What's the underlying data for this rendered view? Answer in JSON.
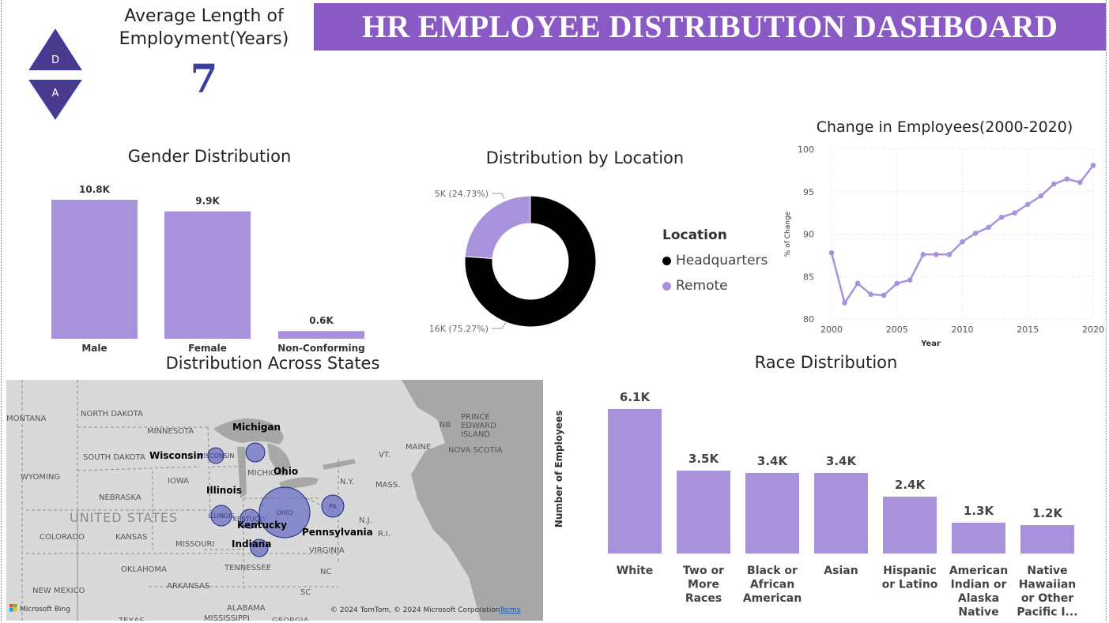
{
  "header": {
    "logo_top_letter": "D",
    "logo_bottom_letter": "A",
    "kpi_title": "Average Length of Employment(Years)",
    "kpi_value": "7",
    "title": "HR EMPLOYEE DISTRIBUTION DASHBOARD"
  },
  "colors": {
    "bar": "#a992dc",
    "banner": "#8a5ac4",
    "kpi_value": "#3b3f9e",
    "donut_hq": "#000000",
    "donut_remote": "#a992dc",
    "map_bubble": "#6a6fc6"
  },
  "gender": {
    "title": "Gender Distribution",
    "chart_data": {
      "type": "bar",
      "categories": [
        "Male",
        "Female",
        "Non-Conforming"
      ],
      "values": [
        10.8,
        9.9,
        0.6
      ],
      "data_labels": [
        "10.8K",
        "9.9K",
        "0.6K"
      ],
      "unit": "K"
    }
  },
  "location": {
    "title": "Distribution by Location",
    "legend_title": "Location",
    "legend": [
      "Headquarters",
      "Remote"
    ],
    "chart_data": {
      "type": "pie",
      "categories": [
        "Headquarters",
        "Remote"
      ],
      "values": [
        16,
        5
      ],
      "percent": [
        75.27,
        24.73
      ],
      "data_labels": [
        "16K (75.27%)",
        "5K (24.73%)"
      ],
      "donut": true
    }
  },
  "employees_change": {
    "title": "Change in Employees(2000-2020)",
    "chart_data": {
      "type": "line",
      "xlabel": "Year",
      "ylabel": "% of Change",
      "x": [
        2000,
        2001,
        2002,
        2003,
        2004,
        2005,
        2006,
        2007,
        2008,
        2009,
        2010,
        2011,
        2012,
        2013,
        2014,
        2015,
        2016,
        2017,
        2018,
        2019,
        2020
      ],
      "values": [
        87.8,
        81.9,
        84.2,
        82.9,
        82.8,
        84.2,
        84.6,
        87.6,
        87.6,
        87.6,
        89.1,
        90.1,
        90.8,
        92.0,
        92.5,
        93.5,
        94.5,
        95.9,
        96.5,
        96.1,
        98.1
      ],
      "ylim": [
        80,
        100
      ],
      "yticks": [
        80,
        85,
        90,
        95,
        100
      ],
      "xticks": [
        2000,
        2005,
        2010,
        2015,
        2020
      ],
      "grid": true
    }
  },
  "states_map": {
    "title": "Distribution Across States",
    "bubble_labels": [
      "Michigan",
      "Wisconsin",
      "Ohio",
      "Illinois",
      "Kentucky",
      "Pennsylvania",
      "Indiana"
    ],
    "bubble_abbrevs": {
      "wisconsin": "WISCONSIN",
      "ohio": "OHIO",
      "pennsylvania": "PA",
      "illinois": "ILLINOIS",
      "kentucky": "KENTUCKY"
    },
    "base_labels": {
      "montana": "MONTANA",
      "north_dakota": "NORTH DAKOTA",
      "minnesota": "MINNESOTA",
      "south_dakota": "SOUTH DAKOTA",
      "wyoming": "WYOMING",
      "iowa": "IOWA",
      "nebraska": "NEBRASKA",
      "united_states": "UNITED STATES",
      "colorado": "COLORADO",
      "kansas": "KANSAS",
      "missouri": "MISSOURI",
      "oklahoma": "OKLAHOMA",
      "arkansas": "ARKANSAS",
      "tennessee": "TENNESSEE",
      "new_mexico": "NEW MEXICO",
      "texas": "TEXAS",
      "mississippi": "MISSISSIPPI",
      "alabama": "ALABAMA",
      "georgia": "GEORGIA",
      "sc": "SC",
      "nc": "NC",
      "virginia": "VIRGINIA",
      "new_york": "N.Y.",
      "vermont": "VT.",
      "maine": "MAINE",
      "massachusetts": "MASS.",
      "nj": "N.J.",
      "ri": "R.I.",
      "michigan": "MICHIGAN",
      "nb": "NB",
      "pei": "PRINCE EDWARD ISLAND",
      "nova_scotia": "NOVA SCOTIA"
    },
    "attribution_brand": "Microsoft Bing",
    "copyright": "© 2024 TomTom, © 2024 Microsoft Corporation",
    "terms_link": "Terms"
  },
  "race": {
    "title": "Race Distribution",
    "ylabel": "Number of Employees",
    "chart_data": {
      "type": "bar",
      "categories": [
        "White",
        "Two or More Races",
        "Black or African American",
        "Asian",
        "Hispanic or Latino",
        "American Indian or Alaska Native",
        "Native Hawaiian or Other Pacific I..."
      ],
      "category_lines": [
        [
          "White"
        ],
        [
          "Two or",
          "More",
          "Races"
        ],
        [
          "Black or",
          "African",
          "American"
        ],
        [
          "Asian"
        ],
        [
          "Hispanic",
          "or Latino"
        ],
        [
          "American",
          "Indian or",
          "Alaska",
          "Native"
        ],
        [
          "Native",
          "Hawaiian",
          "or Other",
          "Pacific I..."
        ]
      ],
      "values": [
        6.1,
        3.5,
        3.4,
        3.4,
        2.4,
        1.3,
        1.2
      ],
      "data_labels": [
        "6.1K",
        "3.5K",
        "3.4K",
        "3.4K",
        "2.4K",
        "1.3K",
        "1.2K"
      ],
      "unit": "K"
    }
  }
}
